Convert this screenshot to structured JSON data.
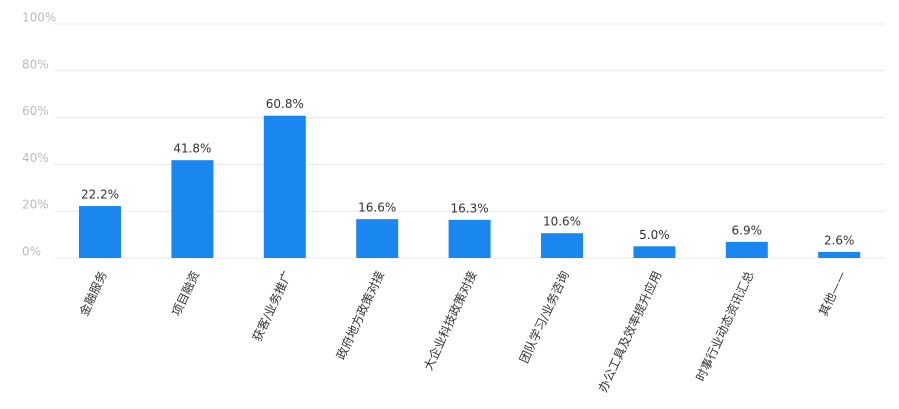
{
  "chart_data": {
    "type": "bar",
    "categories": [
      "金融服务",
      "项目融资",
      "获客/业务推广",
      "政府地方政策对接",
      "大企业科技政策对接",
      "团队学习/业务咨询",
      "办公工具及效率提升应用",
      "时事行业动态资讯汇总",
      "其他——"
    ],
    "values": [
      22.2,
      41.8,
      60.8,
      16.6,
      16.3,
      10.6,
      5.0,
      6.9,
      2.6
    ],
    "value_labels": [
      "22.2%",
      "41.8%",
      "60.8%",
      "16.6%",
      "16.3%",
      "10.6%",
      "5.0%",
      "6.9%",
      "2.6%"
    ],
    "color": "#1a87f0",
    "ylim": [
      0,
      100
    ],
    "yticks": [
      {
        "value": 0,
        "label": "0%"
      },
      {
        "value": 20,
        "label": "20%"
      },
      {
        "value": 40,
        "label": "40%"
      },
      {
        "value": 60,
        "label": "60%"
      },
      {
        "value": 80,
        "label": "80%"
      },
      {
        "value": 100,
        "label": "100%"
      }
    ],
    "grid": true
  }
}
